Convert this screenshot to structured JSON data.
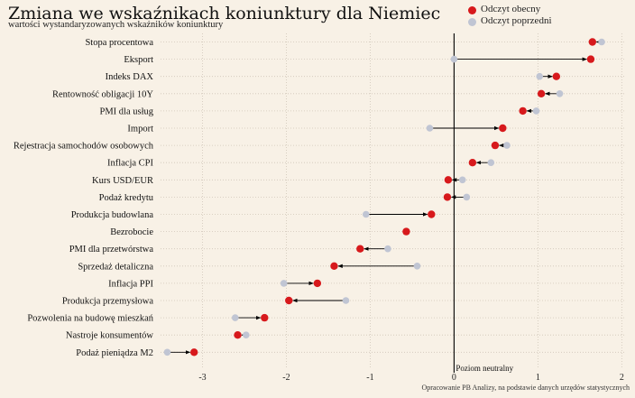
{
  "title": "Zmiana we wskaźnikach koniunktury dla Niemiec",
  "subtitle": "wartości wystandaryzowanych wskaźników koniunktury",
  "source": "Opracowanie PB Analizy, na podstawie danych urzędów statystycznych",
  "colors": {
    "current": "#d7191c",
    "previous": "#c0c5d3",
    "background": "#f8f1e6"
  },
  "chart_data": {
    "type": "dumbbell",
    "legend": {
      "current": "Odczyt obecny",
      "previous": "Odczyt poprzedni",
      "position": "top-right"
    },
    "xlim": [
      -3.5,
      2.05
    ],
    "xticks": [
      -3,
      -2,
      -1,
      0,
      1,
      2
    ],
    "zero_line_label": "Poziom neutralny",
    "grid": true,
    "categories": [
      "Stopa procentowa",
      "Eksport",
      "Indeks DAX",
      "Rentowność obligacji 10Y",
      "PMI dla usług",
      "Import",
      "Rejestracja samochodów osobowych",
      "Inflacja CPI",
      "Kurs USD/EUR",
      "Podaż kredytu",
      "Produkcja budowlana",
      "Bezrobocie",
      "PMI dla przetwórstwa",
      "Sprzedaż detaliczna",
      "Inflacja PPI",
      "Produkcja przemysłowa",
      "Pozwolenia na budowę mieszkań",
      "Nastroje konsumentów",
      "Podaż pieniądza M2"
    ],
    "series": [
      {
        "name": "Odczyt obecny",
        "values": [
          1.65,
          1.63,
          1.22,
          1.04,
          0.82,
          0.58,
          0.49,
          0.22,
          -0.07,
          -0.08,
          -0.27,
          -0.57,
          -1.12,
          -1.43,
          -1.63,
          -1.97,
          -2.26,
          -2.58,
          -3.1
        ]
      },
      {
        "name": "Odczyt poprzedni",
        "values": [
          1.76,
          0.0,
          1.02,
          1.26,
          0.98,
          -0.29,
          0.63,
          0.44,
          0.1,
          0.15,
          -1.05,
          -0.57,
          -0.79,
          -0.44,
          -2.03,
          -1.29,
          -2.61,
          -2.48,
          -3.42
        ]
      }
    ]
  }
}
